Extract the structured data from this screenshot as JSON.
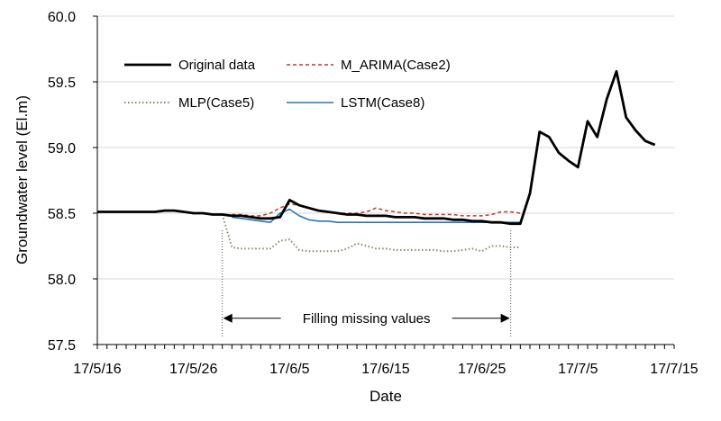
{
  "chart_data": {
    "type": "line",
    "title": "",
    "xlabel": "Date",
    "ylabel": "Groundwater level (El.m)",
    "ylim": [
      57.5,
      60.0
    ],
    "y_ticks": [
      "57.5",
      "58.0",
      "58.5",
      "59.0",
      "59.5",
      "60.0"
    ],
    "x_range_days": [
      0,
      60
    ],
    "x_ticks": [
      {
        "day": 0,
        "label": "17/5/16"
      },
      {
        "day": 10,
        "label": "17/5/26"
      },
      {
        "day": 20,
        "label": "17/6/5"
      },
      {
        "day": 30,
        "label": "17/6/15"
      },
      {
        "day": 40,
        "label": "17/6/25"
      },
      {
        "day": 50,
        "label": "17/7/5"
      },
      {
        "day": 60,
        "label": "17/7/15"
      }
    ],
    "grid": "horizontal",
    "legend": [
      {
        "key": "original",
        "label": "Original data"
      },
      {
        "key": "arima",
        "label": "M_ARIMA(Case2)"
      },
      {
        "key": "mlp",
        "label": "MLP(Case5)"
      },
      {
        "key": "lstm",
        "label": "LSTM(Case8)"
      }
    ],
    "annotation": {
      "text": "Filling missing values",
      "from_day": 13,
      "to_day": 43
    },
    "series": [
      {
        "key": "original",
        "name": "Original data",
        "color": "#000000",
        "style": "solid",
        "width": 2.8,
        "points": [
          [
            0,
            58.51
          ],
          [
            1,
            58.51
          ],
          [
            2,
            58.51
          ],
          [
            3,
            58.51
          ],
          [
            4,
            58.51
          ],
          [
            5,
            58.51
          ],
          [
            6,
            58.51
          ],
          [
            7,
            58.52
          ],
          [
            8,
            58.52
          ],
          [
            9,
            58.51
          ],
          [
            10,
            58.5
          ],
          [
            11,
            58.5
          ],
          [
            12,
            58.49
          ],
          [
            13,
            58.49
          ],
          [
            14,
            58.48
          ],
          [
            15,
            58.48
          ],
          [
            16,
            58.47
          ],
          [
            17,
            58.46
          ],
          [
            18,
            58.46
          ],
          [
            19,
            58.47
          ],
          [
            20,
            58.6
          ],
          [
            21,
            58.56
          ],
          [
            22,
            58.54
          ],
          [
            23,
            58.52
          ],
          [
            24,
            58.51
          ],
          [
            25,
            58.5
          ],
          [
            26,
            58.49
          ],
          [
            27,
            58.49
          ],
          [
            28,
            58.48
          ],
          [
            29,
            58.48
          ],
          [
            30,
            58.48
          ],
          [
            31,
            58.47
          ],
          [
            32,
            58.47
          ],
          [
            33,
            58.47
          ],
          [
            34,
            58.46
          ],
          [
            35,
            58.46
          ],
          [
            36,
            58.46
          ],
          [
            37,
            58.45
          ],
          [
            38,
            58.45
          ],
          [
            39,
            58.44
          ],
          [
            40,
            58.44
          ],
          [
            41,
            58.43
          ],
          [
            42,
            58.43
          ],
          [
            43,
            58.42
          ],
          [
            44,
            58.42
          ],
          [
            45,
            58.65
          ],
          [
            46,
            59.12
          ],
          [
            47,
            59.08
          ],
          [
            48,
            58.96
          ],
          [
            49,
            58.9
          ],
          [
            50,
            58.85
          ],
          [
            51,
            59.2
          ],
          [
            52,
            59.08
          ],
          [
            53,
            59.37
          ],
          [
            54,
            59.58
          ],
          [
            55,
            59.23
          ],
          [
            56,
            59.13
          ],
          [
            57,
            59.05
          ],
          [
            58,
            59.02
          ]
        ]
      },
      {
        "key": "arima",
        "name": "M_ARIMA(Case2)",
        "color": "#c0392b",
        "style": "dashed",
        "width": 1.5,
        "points": [
          [
            14,
            58.49
          ],
          [
            15,
            58.49
          ],
          [
            16,
            58.48
          ],
          [
            17,
            58.48
          ],
          [
            18,
            58.5
          ],
          [
            19,
            58.54
          ],
          [
            20,
            58.57
          ],
          [
            21,
            58.56
          ],
          [
            22,
            58.54
          ],
          [
            23,
            58.52
          ],
          [
            24,
            58.51
          ],
          [
            25,
            58.5
          ],
          [
            26,
            58.5
          ],
          [
            27,
            58.5
          ],
          [
            28,
            58.51
          ],
          [
            29,
            58.54
          ],
          [
            30,
            58.52
          ],
          [
            31,
            58.51
          ],
          [
            32,
            58.5
          ],
          [
            33,
            58.5
          ],
          [
            34,
            58.49
          ],
          [
            35,
            58.49
          ],
          [
            36,
            58.49
          ],
          [
            37,
            58.49
          ],
          [
            38,
            58.48
          ],
          [
            39,
            58.48
          ],
          [
            40,
            58.48
          ],
          [
            41,
            58.49
          ],
          [
            42,
            58.51
          ],
          [
            43,
            58.51
          ],
          [
            44,
            58.5
          ]
        ]
      },
      {
        "key": "mlp",
        "name": "MLP(Case5)",
        "color": "#7f8c6a",
        "style": "dotted",
        "width": 2.0,
        "points": [
          [
            13,
            58.49
          ],
          [
            14,
            58.24
          ],
          [
            15,
            58.23
          ],
          [
            16,
            58.23
          ],
          [
            17,
            58.23
          ],
          [
            18,
            58.23
          ],
          [
            19,
            58.29
          ],
          [
            20,
            58.3
          ],
          [
            21,
            58.22
          ],
          [
            22,
            58.21
          ],
          [
            23,
            58.21
          ],
          [
            24,
            58.21
          ],
          [
            25,
            58.21
          ],
          [
            26,
            58.23
          ],
          [
            27,
            58.27
          ],
          [
            28,
            58.25
          ],
          [
            29,
            58.23
          ],
          [
            30,
            58.23
          ],
          [
            31,
            58.22
          ],
          [
            32,
            58.22
          ],
          [
            33,
            58.22
          ],
          [
            34,
            58.22
          ],
          [
            35,
            58.22
          ],
          [
            36,
            58.21
          ],
          [
            37,
            58.21
          ],
          [
            38,
            58.22
          ],
          [
            39,
            58.23
          ],
          [
            40,
            58.21
          ],
          [
            41,
            58.25
          ],
          [
            42,
            58.25
          ],
          [
            43,
            58.24
          ],
          [
            44,
            58.24
          ]
        ]
      },
      {
        "key": "lstm",
        "name": "LSTM(Case8)",
        "color": "#2e75b6",
        "style": "solid",
        "width": 1.6,
        "points": [
          [
            14,
            58.47
          ],
          [
            15,
            58.46
          ],
          [
            16,
            58.45
          ],
          [
            17,
            58.44
          ],
          [
            18,
            58.43
          ],
          [
            19,
            58.5
          ],
          [
            20,
            58.53
          ],
          [
            21,
            58.48
          ],
          [
            22,
            58.45
          ],
          [
            23,
            58.44
          ],
          [
            24,
            58.44
          ],
          [
            25,
            58.43
          ],
          [
            26,
            58.43
          ],
          [
            27,
            58.43
          ],
          [
            28,
            58.43
          ],
          [
            29,
            58.43
          ],
          [
            30,
            58.43
          ],
          [
            31,
            58.43
          ],
          [
            32,
            58.43
          ],
          [
            33,
            58.43
          ],
          [
            34,
            58.43
          ],
          [
            35,
            58.43
          ],
          [
            36,
            58.43
          ],
          [
            37,
            58.43
          ],
          [
            38,
            58.43
          ],
          [
            39,
            58.43
          ],
          [
            40,
            58.43
          ],
          [
            41,
            58.43
          ],
          [
            42,
            58.43
          ],
          [
            43,
            58.43
          ],
          [
            44,
            58.43
          ]
        ]
      }
    ]
  }
}
